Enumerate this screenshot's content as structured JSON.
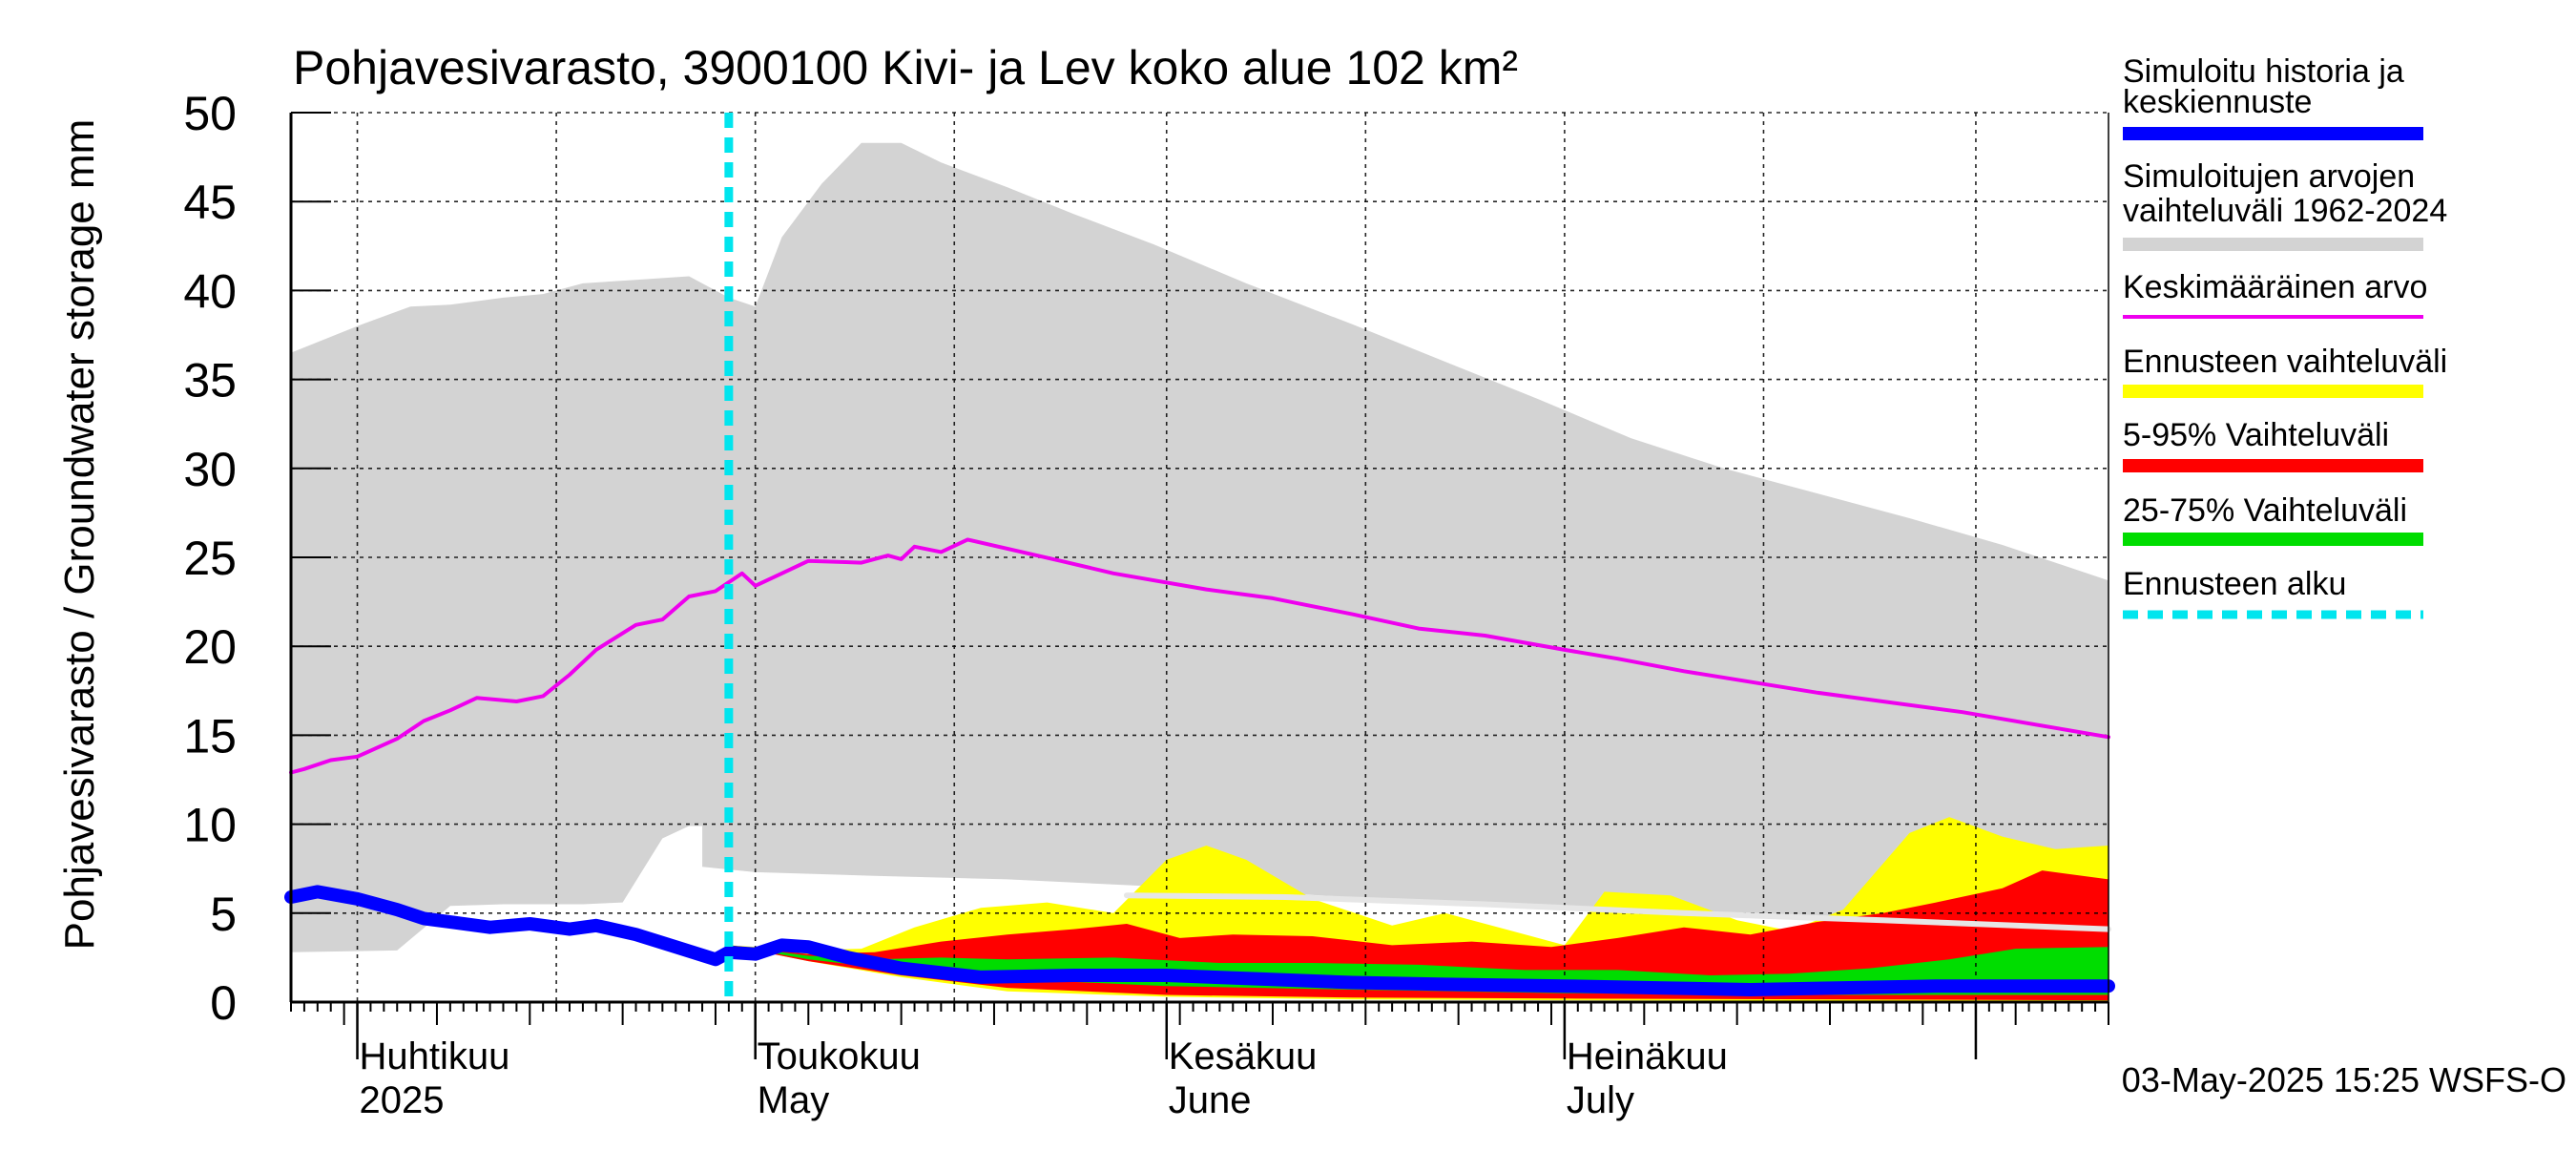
{
  "chart_data": {
    "type": "area",
    "title": "Pohjavesivarasto, 3900100 Kivi- ja Lev koko alue 102 km²",
    "ylabel": "Pohjavesivarasto / Groundwater storage   mm",
    "ylim": [
      0,
      50
    ],
    "yticks": [
      0,
      5,
      10,
      15,
      20,
      25,
      30,
      35,
      40,
      45,
      50
    ],
    "xlim": [
      "2025-03-27",
      "2025-08-11"
    ],
    "month_labels": [
      {
        "date": "2025-04-01",
        "line1": "Huhtikuu",
        "line2": "2025"
      },
      {
        "date": "2025-05-01",
        "line1": "Toukokuu",
        "line2": "May"
      },
      {
        "date": "2025-06-01",
        "line1": "Kesäkuu",
        "line2": "June"
      },
      {
        "date": "2025-07-01",
        "line1": "Heinäkuu",
        "line2": "July"
      }
    ],
    "month_boundaries": [
      "2025-04-01",
      "2025-05-01",
      "2025-06-01",
      "2025-07-01",
      "2025-08-01"
    ],
    "forecast_start": "2025-04-29",
    "timestamp": "03-May-2025 15:25 WSFS-O",
    "grid": true,
    "legend_position": "right",
    "colors": {
      "history_range": "#d3d3d3",
      "mean": "#ee00ee",
      "forecast_range": "#ffff00",
      "p5_95": "#ff0000",
      "p25_75": "#00dd00",
      "simulated": "#0000ff",
      "forecast_start": "#00e5ee",
      "p50_white": "#e6e6e6"
    },
    "legend": [
      {
        "key": "simulated",
        "line1": "Simuloitu historia ja",
        "line2": "keskiennuste",
        "style": "thick"
      },
      {
        "key": "history_range",
        "line1": "Simuloitujen arvojen",
        "line2": "vaihteluväli 1962-2024",
        "style": "thick"
      },
      {
        "key": "mean",
        "line1": "Keskimääräinen arvo",
        "line2": "",
        "style": "thin"
      },
      {
        "key": "forecast_range",
        "line1": "Ennusteen vaihteluväli",
        "line2": "",
        "style": "thick"
      },
      {
        "key": "p5_95",
        "line1": "5-95% Vaihteluväli",
        "line2": "",
        "style": "thick"
      },
      {
        "key": "p25_75",
        "line1": "25-75% Vaihteluväli",
        "line2": "",
        "style": "thick"
      },
      {
        "key": "forecast_start",
        "line1": "Ennusteen alku",
        "line2": "",
        "style": "dashed"
      }
    ],
    "series": {
      "history_range": {
        "upper": [
          [
            "2025-03-27",
            36.5
          ],
          [
            "2025-04-01",
            38
          ],
          [
            "2025-04-05",
            39.1
          ],
          [
            "2025-04-08",
            39.2
          ],
          [
            "2025-04-12",
            39.6
          ],
          [
            "2025-04-15",
            39.8
          ],
          [
            "2025-04-18",
            40.4
          ],
          [
            "2025-04-22",
            40.6
          ],
          [
            "2025-04-26",
            40.8
          ],
          [
            "2025-04-29",
            39.6
          ],
          [
            "2025-05-01",
            39.1
          ],
          [
            "2025-05-03",
            43
          ],
          [
            "2025-05-06",
            46
          ],
          [
            "2025-05-09",
            48.3
          ],
          [
            "2025-05-12",
            48.3
          ],
          [
            "2025-05-15",
            47.2
          ],
          [
            "2025-05-20",
            45.8
          ],
          [
            "2025-05-25",
            44.3
          ],
          [
            "2025-05-31",
            42.6
          ],
          [
            "2025-06-07",
            40.4
          ],
          [
            "2025-06-15",
            38.1
          ],
          [
            "2025-06-22",
            36
          ],
          [
            "2025-06-29",
            33.9
          ],
          [
            "2025-07-06",
            31.7
          ],
          [
            "2025-07-13",
            30
          ],
          [
            "2025-07-20",
            28.6
          ],
          [
            "2025-07-27",
            27.2
          ],
          [
            "2025-08-03",
            25.7
          ],
          [
            "2025-08-11",
            23.7
          ]
        ],
        "lower": [
          [
            "2025-03-27",
            2.8
          ],
          [
            "2025-04-04",
            2.9
          ],
          [
            "2025-04-08",
            5.4
          ],
          [
            "2025-04-12",
            5.5
          ],
          [
            "2025-04-18",
            5.5
          ],
          [
            "2025-04-21",
            5.6
          ],
          [
            "2025-04-24",
            9.2
          ],
          [
            "2025-04-26",
            9.9
          ],
          [
            "2025-04-27",
            9.9
          ],
          [
            "2025-04-27",
            7.6
          ],
          [
            "2025-05-01",
            7.3
          ],
          [
            "2025-05-10",
            7.1
          ],
          [
            "2025-05-20",
            6.9
          ],
          [
            "2025-05-31",
            6.5
          ],
          [
            "2025-06-10",
            6.1
          ],
          [
            "2025-06-20",
            5.7
          ],
          [
            "2025-06-30",
            5.3
          ],
          [
            "2025-07-10",
            5
          ],
          [
            "2025-07-20",
            4.8
          ],
          [
            "2025-07-31",
            4.5
          ],
          [
            "2025-08-11",
            4.2
          ]
        ]
      },
      "forecast_range": {
        "upper": [
          [
            "2025-04-29",
            3.2
          ],
          [
            "2025-05-05",
            2.9
          ],
          [
            "2025-05-09",
            3
          ],
          [
            "2025-05-13",
            4.2
          ],
          [
            "2025-05-18",
            5.3
          ],
          [
            "2025-05-23",
            5.6
          ],
          [
            "2025-05-28",
            5
          ],
          [
            "2025-06-01",
            8
          ],
          [
            "2025-06-04",
            8.8
          ],
          [
            "2025-06-07",
            8
          ],
          [
            "2025-06-12",
            5.8
          ],
          [
            "2025-06-18",
            4.3
          ],
          [
            "2025-06-22",
            5
          ],
          [
            "2025-06-27",
            4
          ],
          [
            "2025-07-01",
            3.2
          ],
          [
            "2025-07-04",
            6.2
          ],
          [
            "2025-07-09",
            6
          ],
          [
            "2025-07-14",
            4.6
          ],
          [
            "2025-07-18",
            4
          ],
          [
            "2025-07-22",
            5.2
          ],
          [
            "2025-07-27",
            9.5
          ],
          [
            "2025-07-30",
            10.4
          ],
          [
            "2025-08-03",
            9.3
          ],
          [
            "2025-08-07",
            8.6
          ],
          [
            "2025-08-11",
            8.8
          ]
        ],
        "lower": [
          [
            "2025-04-29",
            3.2
          ],
          [
            "2025-05-05",
            2.3
          ],
          [
            "2025-05-12",
            1.4
          ],
          [
            "2025-05-20",
            0.6
          ],
          [
            "2025-06-01",
            0.3
          ],
          [
            "2025-06-15",
            0.15
          ],
          [
            "2025-07-01",
            0.1
          ],
          [
            "2025-08-11",
            0.05
          ]
        ]
      },
      "p5_95": {
        "upper": [
          [
            "2025-04-29",
            3.2
          ],
          [
            "2025-05-05",
            2.7
          ],
          [
            "2025-05-10",
            2.8
          ],
          [
            "2025-05-15",
            3.4
          ],
          [
            "2025-05-20",
            3.8
          ],
          [
            "2025-05-25",
            4.1
          ],
          [
            "2025-05-29",
            4.4
          ],
          [
            "2025-06-02",
            3.6
          ],
          [
            "2025-06-06",
            3.8
          ],
          [
            "2025-06-12",
            3.7
          ],
          [
            "2025-06-18",
            3.2
          ],
          [
            "2025-06-24",
            3.4
          ],
          [
            "2025-06-30",
            3.1
          ],
          [
            "2025-07-05",
            3.6
          ],
          [
            "2025-07-10",
            4.2
          ],
          [
            "2025-07-15",
            3.8
          ],
          [
            "2025-07-20",
            4.5
          ],
          [
            "2025-07-25",
            5
          ],
          [
            "2025-07-29",
            5.6
          ],
          [
            "2025-08-03",
            6.4
          ],
          [
            "2025-08-06",
            7.4
          ],
          [
            "2025-08-11",
            6.9
          ]
        ],
        "lower": [
          [
            "2025-04-29",
            3.2
          ],
          [
            "2025-05-05",
            2.3
          ],
          [
            "2025-05-12",
            1.5
          ],
          [
            "2025-05-20",
            0.8
          ],
          [
            "2025-06-01",
            0.4
          ],
          [
            "2025-06-15",
            0.25
          ],
          [
            "2025-07-01",
            0.2
          ],
          [
            "2025-08-11",
            0.1
          ]
        ]
      },
      "p25_75": {
        "upper": [
          [
            "2025-04-29",
            3.2
          ],
          [
            "2025-05-05",
            2.6
          ],
          [
            "2025-05-10",
            2.4
          ],
          [
            "2025-05-15",
            2.5
          ],
          [
            "2025-05-20",
            2.4
          ],
          [
            "2025-05-28",
            2.5
          ],
          [
            "2025-06-05",
            2.2
          ],
          [
            "2025-06-12",
            2.2
          ],
          [
            "2025-06-20",
            2.1
          ],
          [
            "2025-06-28",
            1.8
          ],
          [
            "2025-07-05",
            1.8
          ],
          [
            "2025-07-12",
            1.5
          ],
          [
            "2025-07-18",
            1.6
          ],
          [
            "2025-07-24",
            1.9
          ],
          [
            "2025-07-30",
            2.4
          ],
          [
            "2025-08-04",
            3
          ],
          [
            "2025-08-11",
            3.1
          ]
        ],
        "lower": [
          [
            "2025-04-29",
            3.2
          ],
          [
            "2025-05-05",
            2.4
          ],
          [
            "2025-05-12",
            1.8
          ],
          [
            "2025-05-20",
            1.3
          ],
          [
            "2025-06-01",
            0.9
          ],
          [
            "2025-06-15",
            0.7
          ],
          [
            "2025-07-01",
            0.5
          ],
          [
            "2025-07-15",
            0.4
          ],
          [
            "2025-08-11",
            0.4
          ]
        ]
      },
      "p50_white": [
        [
          "2025-05-29",
          6
        ],
        [
          "2025-06-10",
          5.9
        ],
        [
          "2025-06-25",
          5.5
        ],
        [
          "2025-07-10",
          5
        ],
        [
          "2025-07-25",
          4.6
        ],
        [
          "2025-08-11",
          4.1
        ]
      ],
      "mean": [
        [
          "2025-03-27",
          12.9
        ],
        [
          "2025-03-28",
          13.1
        ],
        [
          "2025-03-30",
          13.6
        ],
        [
          "2025-04-01",
          13.8
        ],
        [
          "2025-04-04",
          14.8
        ],
        [
          "2025-04-06",
          15.8
        ],
        [
          "2025-04-08",
          16.4
        ],
        [
          "2025-04-10",
          17.1
        ],
        [
          "2025-04-13",
          16.9
        ],
        [
          "2025-04-15",
          17.2
        ],
        [
          "2025-04-17",
          18.4
        ],
        [
          "2025-04-19",
          19.8
        ],
        [
          "2025-04-22",
          21.2
        ],
        [
          "2025-04-24",
          21.5
        ],
        [
          "2025-04-26",
          22.8
        ],
        [
          "2025-04-28",
          23.1
        ],
        [
          "2025-04-30",
          24.1
        ],
        [
          "2025-05-01",
          23.4
        ],
        [
          "2025-05-03",
          24.1
        ],
        [
          "2025-05-05",
          24.8
        ],
        [
          "2025-05-09",
          24.7
        ],
        [
          "2025-05-11",
          25.1
        ],
        [
          "2025-05-12",
          24.9
        ],
        [
          "2025-05-13",
          25.6
        ],
        [
          "2025-05-15",
          25.3
        ],
        [
          "2025-05-17",
          26
        ],
        [
          "2025-05-24",
          24.8
        ],
        [
          "2025-05-28",
          24.1
        ],
        [
          "2025-06-04",
          23.2
        ],
        [
          "2025-06-09",
          22.7
        ],
        [
          "2025-06-15",
          21.8
        ],
        [
          "2025-06-20",
          21
        ],
        [
          "2025-06-25",
          20.6
        ],
        [
          "2025-07-01",
          19.8
        ],
        [
          "2025-07-05",
          19.3
        ],
        [
          "2025-07-10",
          18.6
        ],
        [
          "2025-07-20",
          17.4
        ],
        [
          "2025-07-31",
          16.3
        ],
        [
          "2025-08-11",
          14.9
        ]
      ],
      "simulated": [
        [
          "2025-03-27",
          5.9
        ],
        [
          "2025-03-29",
          6.2
        ],
        [
          "2025-04-01",
          5.8
        ],
        [
          "2025-04-04",
          5.2
        ],
        [
          "2025-04-06",
          4.7
        ],
        [
          "2025-04-08",
          4.5
        ],
        [
          "2025-04-11",
          4.2
        ],
        [
          "2025-04-14",
          4.4
        ],
        [
          "2025-04-17",
          4.1
        ],
        [
          "2025-04-19",
          4.3
        ],
        [
          "2025-04-22",
          3.8
        ],
        [
          "2025-04-25",
          3.1
        ],
        [
          "2025-04-28",
          2.4
        ],
        [
          "2025-04-29",
          2.8
        ],
        [
          "2025-05-01",
          2.7
        ],
        [
          "2025-05-03",
          3.2
        ],
        [
          "2025-05-05",
          3.1
        ],
        [
          "2025-05-08",
          2.5
        ],
        [
          "2025-05-12",
          1.9
        ],
        [
          "2025-05-18",
          1.4
        ],
        [
          "2025-05-25",
          1.5
        ],
        [
          "2025-06-01",
          1.5
        ],
        [
          "2025-06-08",
          1.3
        ],
        [
          "2025-06-15",
          1.1
        ],
        [
          "2025-06-22",
          1
        ],
        [
          "2025-07-01",
          0.9
        ],
        [
          "2025-07-08",
          0.8
        ],
        [
          "2025-07-15",
          0.7
        ],
        [
          "2025-07-22",
          0.8
        ],
        [
          "2025-07-29",
          0.9
        ],
        [
          "2025-08-05",
          0.9
        ],
        [
          "2025-08-11",
          0.9
        ]
      ]
    }
  }
}
